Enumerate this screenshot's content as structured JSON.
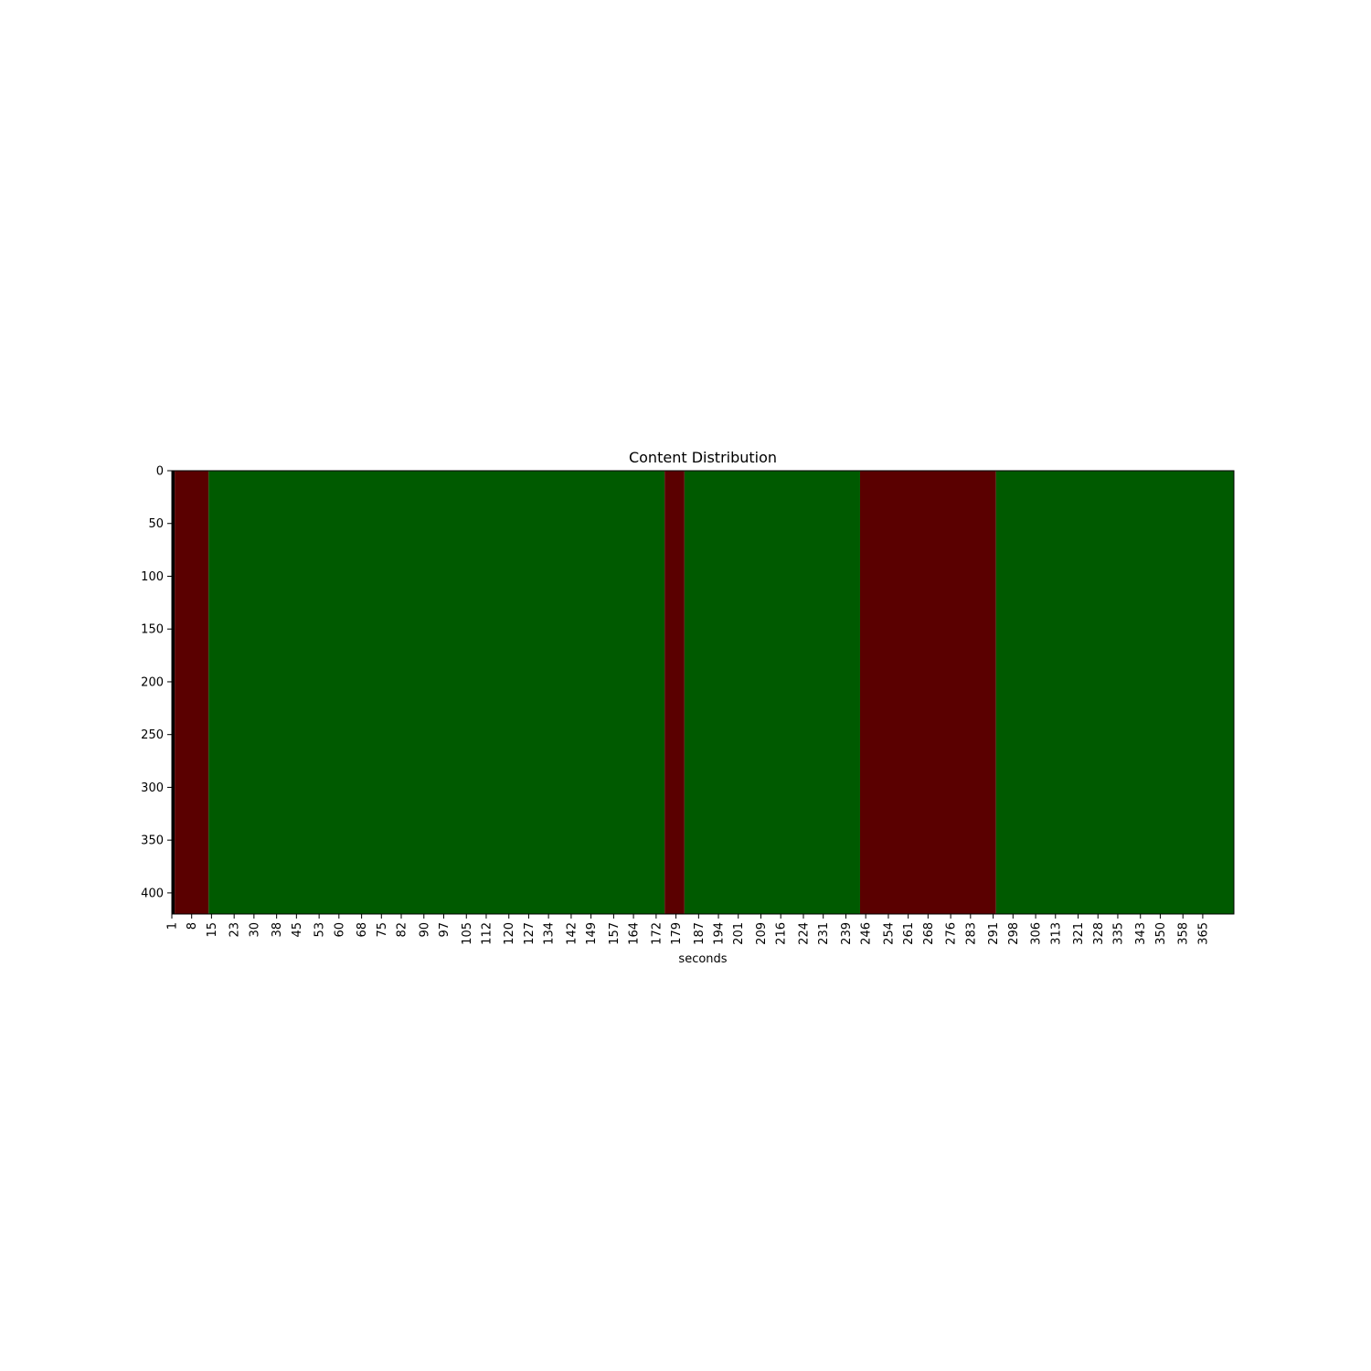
{
  "chart_data": {
    "type": "heatmap",
    "title": "Content Distribution",
    "xlabel": "seconds",
    "ylabel": "",
    "x_range": [
      1,
      375
    ],
    "y_range": [
      0,
      420
    ],
    "y_ticks": [
      0,
      50,
      100,
      150,
      200,
      250,
      300,
      350,
      400
    ],
    "x_tick_labels": [
      "1",
      "8",
      "15",
      "23",
      "30",
      "38",
      "45",
      "53",
      "60",
      "68",
      "75",
      "82",
      "90",
      "97",
      "105",
      "112",
      "120",
      "127",
      "134",
      "142",
      "149",
      "157",
      "164",
      "172",
      "179",
      "187",
      "194",
      "201",
      "209",
      "216",
      "224",
      "231",
      "239",
      "246",
      "254",
      "261",
      "268",
      "276",
      "283",
      "291",
      "298",
      "306",
      "313",
      "321",
      "328",
      "335",
      "343",
      "350",
      "358",
      "365"
    ],
    "segments": [
      {
        "start": 1,
        "end": 2,
        "state": "other"
      },
      {
        "start": 2,
        "end": 14,
        "state": "red"
      },
      {
        "start": 14,
        "end": 175,
        "state": "green"
      },
      {
        "start": 175,
        "end": 182,
        "state": "red"
      },
      {
        "start": 182,
        "end": 244,
        "state": "green"
      },
      {
        "start": 244,
        "end": 292,
        "state": "red"
      },
      {
        "start": 292,
        "end": 376,
        "state": "green"
      }
    ],
    "colors": {
      "green": "#005a00",
      "red": "#5a0000",
      "other": "#000000"
    },
    "grid": false,
    "legend": "none"
  }
}
